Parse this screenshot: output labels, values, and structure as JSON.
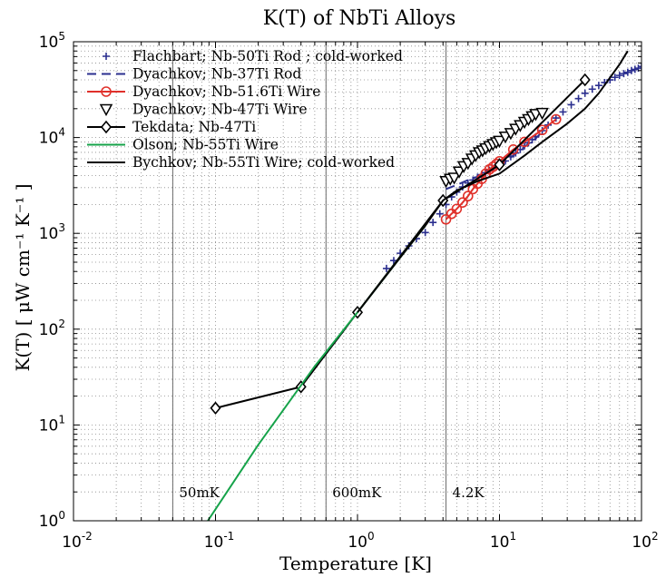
{
  "chart_data": {
    "type": "line",
    "title": "K(T) of NbTi Alloys",
    "xlabel": "Temperature [K]",
    "ylabel": "K(T) [ μW cm⁻¹ K⁻¹ ]",
    "xscale": "log",
    "yscale": "log",
    "xlim": [
      0.01,
      100
    ],
    "ylim": [
      1,
      100000
    ],
    "grid": true,
    "legend_position": "top-left",
    "x_ticks": [
      {
        "value": 0.01,
        "base": "10",
        "exp": "-2"
      },
      {
        "value": 0.1,
        "base": "10",
        "exp": "-1"
      },
      {
        "value": 1,
        "base": "10",
        "exp": "0"
      },
      {
        "value": 10,
        "base": "10",
        "exp": "1"
      },
      {
        "value": 100,
        "base": "10",
        "exp": "2"
      }
    ],
    "y_ticks": [
      {
        "value": 1,
        "base": "10",
        "exp": "0"
      },
      {
        "value": 10,
        "base": "10",
        "exp": "1"
      },
      {
        "value": 100,
        "base": "10",
        "exp": "2"
      },
      {
        "value": 1000,
        "base": "10",
        "exp": "3"
      },
      {
        "value": 10000,
        "base": "10",
        "exp": "4"
      },
      {
        "value": 100000,
        "base": "10",
        "exp": "5"
      }
    ],
    "reference_lines": [
      {
        "x": 0.05,
        "label": "50mK"
      },
      {
        "x": 0.6,
        "label": "600mK"
      },
      {
        "x": 4.2,
        "label": "4.2K"
      }
    ],
    "series": [
      {
        "name": "Flachbart; Nb-50Ti Rod ; cold-worked",
        "color": "#2b2f8f",
        "marker": "plus",
        "line": "none",
        "x": [
          1.6,
          1.8,
          2.0,
          2.3,
          2.6,
          3.0,
          3.4,
          3.8,
          4.2,
          4.6,
          5.0,
          5.5,
          6.0,
          6.5,
          7.0,
          7.5,
          8.0,
          8.5,
          9.0,
          9.5,
          10.0,
          11,
          12,
          13,
          14,
          15,
          16,
          17,
          18,
          20,
          22,
          25,
          28,
          32,
          36,
          40,
          45,
          50,
          55,
          60,
          65,
          70,
          75,
          80,
          85,
          90,
          95,
          100
        ],
        "y": [
          430,
          520,
          620,
          740,
          880,
          1020,
          1300,
          1600,
          2000,
          2400,
          2700,
          3050,
          3350,
          3600,
          3850,
          4100,
          4300,
          4550,
          4750,
          4950,
          5100,
          5700,
          6300,
          6900,
          7500,
          8200,
          8800,
          9500,
          10200,
          11800,
          13500,
          16000,
          18500,
          22000,
          25500,
          29000,
          32000,
          35000,
          37500,
          40000,
          42500,
          44500,
          46500,
          48000,
          50000,
          51500,
          53000,
          55000
        ]
      },
      {
        "name": "Dyachkov; Nb-37Ti Rod",
        "color": "#2b2f8f",
        "marker": "none",
        "line": "dashed",
        "x": [
          4.2,
          5,
          6,
          7,
          8,
          10,
          12,
          15,
          18,
          20
        ],
        "y": [
          2900,
          3200,
          3600,
          3900,
          4200,
          5000,
          6200,
          8000,
          9800,
          11500
        ]
      },
      {
        "name": "Dyachkov; Nb-51.6Ti Wire",
        "color": "#e0302a",
        "marker": "circle",
        "line": "solid",
        "x": [
          4.2,
          4.6,
          5.0,
          5.5,
          6.0,
          6.5,
          7.0,
          7.5,
          8.0,
          8.5,
          9.0,
          9.5,
          10,
          12.5,
          15,
          20,
          25
        ],
        "y": [
          1400,
          1600,
          1800,
          2100,
          2450,
          2900,
          3300,
          3700,
          4200,
          4650,
          4950,
          5300,
          5650,
          7500,
          9000,
          12000,
          15500
        ]
      },
      {
        "name": "Dyachkov; Nb-47Ti Wire",
        "color": "#000000",
        "marker": "triangle-down",
        "line": "none",
        "x": [
          4.2,
          4.5,
          4.8,
          5.2,
          5.6,
          6.0,
          6.4,
          6.8,
          7.2,
          7.6,
          8.0,
          8.5,
          9.0,
          9.5,
          10.0,
          11,
          12,
          13,
          14,
          15,
          16,
          17,
          18,
          20
        ],
        "y": [
          3500,
          3700,
          3800,
          4400,
          5000,
          5400,
          6000,
          6500,
          7000,
          7300,
          7700,
          8100,
          8500,
          8900,
          9200,
          10200,
          11100,
          12300,
          13400,
          14500,
          15500,
          16600,
          17500,
          18000
        ]
      },
      {
        "name": "Tekdata; Nb-47Ti",
        "color": "#000000",
        "marker": "diamond",
        "line": "solid",
        "x": [
          0.1,
          0.4,
          1.0,
          4.0,
          10.0,
          40.0
        ],
        "y": [
          15,
          25,
          150,
          2200,
          5200,
          40000
        ]
      },
      {
        "name": "Olson; Nb-55Ti Wire",
        "color": "#16a34a",
        "marker": "none",
        "line": "solid",
        "x": [
          0.08,
          0.2,
          0.5,
          1.0,
          2.0,
          3.0
        ],
        "y": [
          0.8,
          6.2,
          41,
          150,
          560,
          1200
        ]
      },
      {
        "name": "Bychkov; Nb-55Ti Wire; cold-worked",
        "color": "#000000",
        "marker": "none",
        "line": "solid",
        "x": [
          1.0,
          2.0,
          3.0,
          4.0,
          5.0,
          7.0,
          10.0,
          15.0,
          20.0,
          30.0,
          40.0,
          50.0,
          70.0,
          80.0
        ],
        "y": [
          150,
          560,
          1200,
          2200,
          2800,
          3500,
          4200,
          6500,
          9000,
          14000,
          20000,
          29000,
          58000,
          80000
        ]
      }
    ]
  }
}
